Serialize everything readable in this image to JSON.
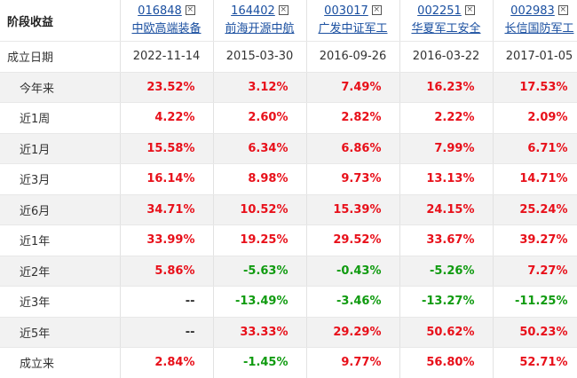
{
  "header": {
    "title": "阶段收益"
  },
  "funds": [
    {
      "code": "016848",
      "name": "中欧高端装备"
    },
    {
      "code": "164402",
      "name": "前海开源中航"
    },
    {
      "code": "003017",
      "name": "广发中证军工"
    },
    {
      "code": "002251",
      "name": "华夏军工安全"
    },
    {
      "code": "002983",
      "name": "长信国防军工"
    }
  ],
  "rows": [
    {
      "label": "成立日期",
      "cells": [
        "2022-11-14",
        "2015-03-30",
        "2016-09-26",
        "2016-03-22",
        "2017-01-05"
      ]
    },
    {
      "label": "今年来",
      "cells": [
        "23.52%",
        "3.12%",
        "7.49%",
        "16.23%",
        "17.53%"
      ]
    },
    {
      "label": "近1周",
      "cells": [
        "4.22%",
        "2.60%",
        "2.82%",
        "2.22%",
        "2.09%"
      ]
    },
    {
      "label": "近1月",
      "cells": [
        "15.58%",
        "6.34%",
        "6.86%",
        "7.99%",
        "6.71%"
      ]
    },
    {
      "label": "近3月",
      "cells": [
        "16.14%",
        "8.98%",
        "9.73%",
        "13.13%",
        "14.71%"
      ]
    },
    {
      "label": "近6月",
      "cells": [
        "34.71%",
        "10.52%",
        "15.39%",
        "24.15%",
        "25.24%"
      ]
    },
    {
      "label": "近1年",
      "cells": [
        "33.99%",
        "19.25%",
        "29.52%",
        "33.67%",
        "39.27%"
      ]
    },
    {
      "label": "近2年",
      "cells": [
        "5.86%",
        "-5.63%",
        "-0.43%",
        "-5.26%",
        "7.27%"
      ]
    },
    {
      "label": "近3年",
      "cells": [
        "--",
        "-13.49%",
        "-3.46%",
        "-13.27%",
        "-11.25%"
      ]
    },
    {
      "label": "近5年",
      "cells": [
        "--",
        "33.33%",
        "29.29%",
        "50.62%",
        "50.23%"
      ]
    },
    {
      "label": "成立来",
      "cells": [
        "2.84%",
        "-1.45%",
        "9.77%",
        "56.80%",
        "52.71%"
      ]
    }
  ]
}
